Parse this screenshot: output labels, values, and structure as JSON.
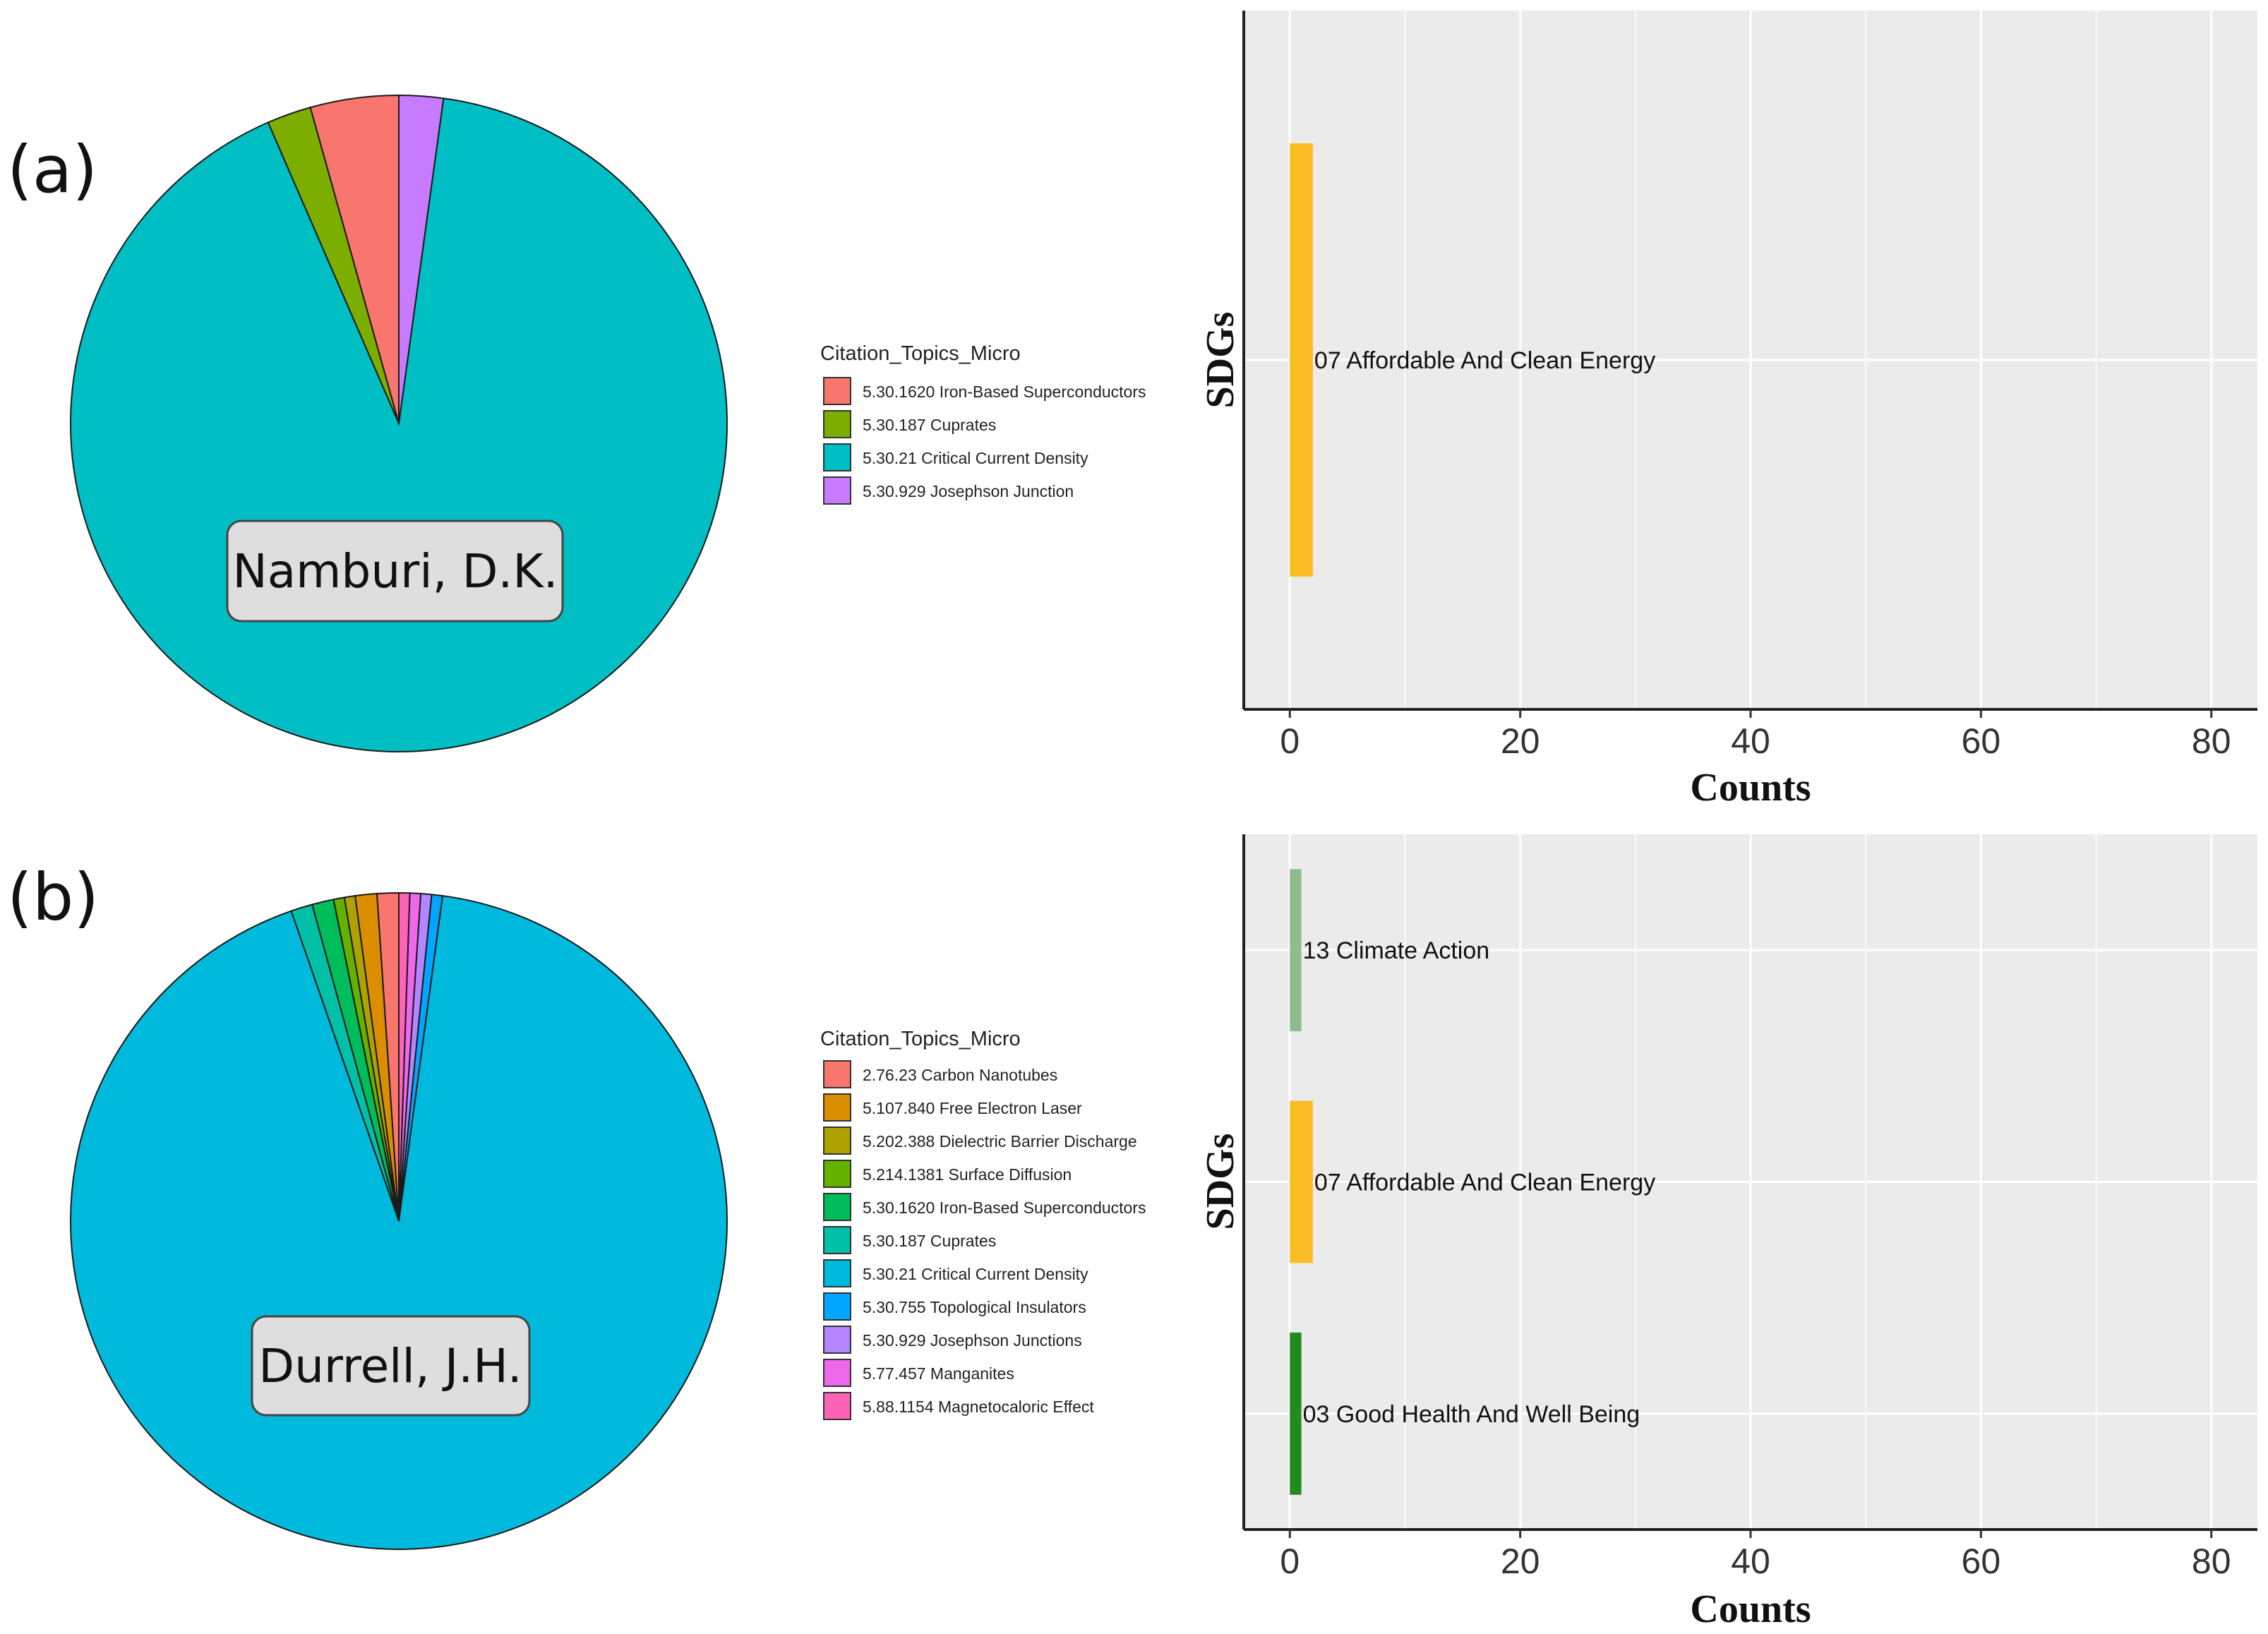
{
  "chart_data": [
    {
      "panel": "(a)",
      "type": "pie",
      "name_label": "Namburi, D.K.",
      "legend_title": "Citation_Topics_Micro",
      "slices": [
        {
          "label": "5.30.1620 Iron-Based Superconductors",
          "value": 2,
          "color": "#F8766D"
        },
        {
          "label": "5.30.187 Cuprates",
          "value": 1,
          "color": "#7CAE00"
        },
        {
          "label": "5.30.21 Critical Current Density",
          "value": 42,
          "color": "#00BFC4"
        },
        {
          "label": "5.30.929 Josephson Junction",
          "value": 1,
          "color": "#C77CFF"
        }
      ]
    },
    {
      "panel": "(a)",
      "type": "bar",
      "orientation": "horizontal",
      "ylabel": "SDGs",
      "xlabel": "Counts",
      "xlim": [
        -4,
        84
      ],
      "xticks": [
        0,
        20,
        40,
        60,
        80
      ],
      "categories": [
        "07 Affordable And Clean Energy"
      ],
      "values": [
        2
      ],
      "colors": [
        "#FCBC26"
      ]
    },
    {
      "panel": "(b)",
      "type": "pie",
      "name_label": "Durrell, J.H.",
      "legend_title": "Citation_Topics_Micro",
      "slices": [
        {
          "label": "2.76.23 Carbon Nanotubes",
          "value": 1,
          "color": "#F8766D"
        },
        {
          "label": "5.107.840 Free Electron Laser",
          "value": 1,
          "color": "#DB8E00"
        },
        {
          "label": "5.202.388 Dielectric Barrier Discharge",
          "value": 0.5,
          "color": "#AEA200"
        },
        {
          "label": "5.214.1381 Surface Diffusion",
          "value": 0.5,
          "color": "#64B200"
        },
        {
          "label": "5.30.1620 Iron-Based Superconductors",
          "value": 1,
          "color": "#00BD5C"
        },
        {
          "label": "5.30.187 Cuprates",
          "value": 1,
          "color": "#00C1A7"
        },
        {
          "label": "5.30.21 Critical Current Density",
          "value": 87,
          "color": "#00BADE"
        },
        {
          "label": "5.30.755 Topological Insulators",
          "value": 0.5,
          "color": "#00A6FF"
        },
        {
          "label": "5.30.929 Josephson Junctions",
          "value": 0.5,
          "color": "#B385FF"
        },
        {
          "label": "5.77.457 Manganites",
          "value": 0.5,
          "color": "#EF67EB"
        },
        {
          "label": "5.88.1154 Magnetocaloric Effect",
          "value": 0.5,
          "color": "#FF63B6"
        }
      ]
    },
    {
      "panel": "(b)",
      "type": "bar",
      "orientation": "horizontal",
      "ylabel": "SDGs",
      "xlabel": "Counts",
      "xlim": [
        -4,
        84
      ],
      "xticks": [
        0,
        20,
        40,
        60,
        80
      ],
      "categories": [
        "13 Climate Action",
        "07 Affordable And Clean Energy",
        "03 Good Health And Well Being"
      ],
      "values": [
        1,
        2,
        1
      ],
      "colors": [
        "#8FBC8F",
        "#FCBC26",
        "#228B22"
      ]
    }
  ]
}
